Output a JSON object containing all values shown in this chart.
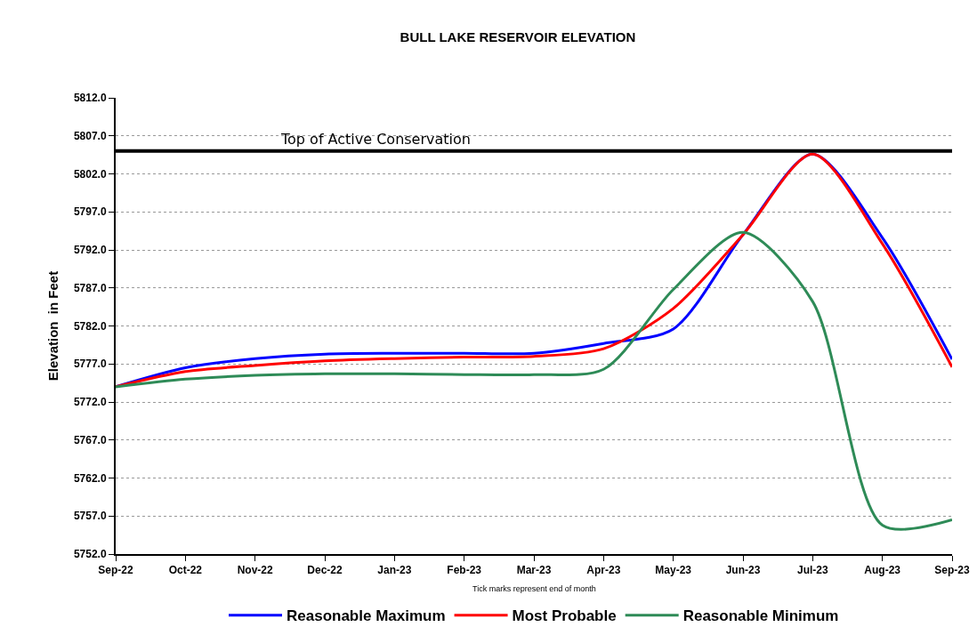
{
  "chart_data": {
    "type": "line",
    "title": "BULL LAKE RESERVOIR ELEVATION",
    "ylabel": "Elevation  in Feet",
    "categories": [
      "Sep-22",
      "Oct-22",
      "Nov-22",
      "Dec-22",
      "Jan-23",
      "Feb-23",
      "Mar-23",
      "Apr-23",
      "May-23",
      "Jun-23",
      "Jul-23",
      "Aug-23",
      "Sep-23"
    ],
    "series": [
      {
        "name": "Reasonable Maximum",
        "color": "#0000ff",
        "values": [
          5774.0,
          5776.5,
          5777.7,
          5778.3,
          5778.4,
          5778.4,
          5778.4,
          5779.7,
          5781.6,
          5794.0,
          5804.6,
          5793.6,
          5777.6
        ]
      },
      {
        "name": "Most Probable",
        "color": "#ff0000",
        "values": [
          5774.0,
          5776.0,
          5776.8,
          5777.4,
          5777.7,
          5777.9,
          5778.0,
          5779.0,
          5784.3,
          5794.0,
          5804.6,
          5792.8,
          5776.6
        ]
      },
      {
        "name": "Reasonable Minimum",
        "color": "#2e8b57",
        "values": [
          5774.0,
          5775.0,
          5775.5,
          5775.7,
          5775.7,
          5775.6,
          5775.6,
          5776.3,
          5786.8,
          5794.3,
          5785.2,
          5755.8,
          5756.5
        ]
      }
    ],
    "ylim": [
      5752,
      5812
    ],
    "yticks": [
      {
        "value": 5752,
        "label": "5752.0"
      },
      {
        "value": 5757,
        "label": "5757.0"
      },
      {
        "value": 5762,
        "label": "5762.0"
      },
      {
        "value": 5767,
        "label": "5767.0"
      },
      {
        "value": 5772,
        "label": "5772.0"
      },
      {
        "value": 5777,
        "label": "5777.0"
      },
      {
        "value": 5782,
        "label": "5782.0"
      },
      {
        "value": 5787,
        "label": "5787.0"
      },
      {
        "value": 5792,
        "label": "5792.0"
      },
      {
        "value": 5797,
        "label": "5797.0"
      },
      {
        "value": 5802,
        "label": "5802.0"
      },
      {
        "value": 5807,
        "label": "5807.0"
      },
      {
        "value": 5812,
        "label": "5812.0"
      }
    ],
    "ref_lines": [
      {
        "axis": "y",
        "value": 5805.0,
        "label": "Top of Active Conservation",
        "color": "#000000"
      }
    ],
    "annotations": [
      "Tick marks represent end of month"
    ],
    "grid": "y",
    "legend": "bottom",
    "marker": "none",
    "line_style": "solid"
  }
}
